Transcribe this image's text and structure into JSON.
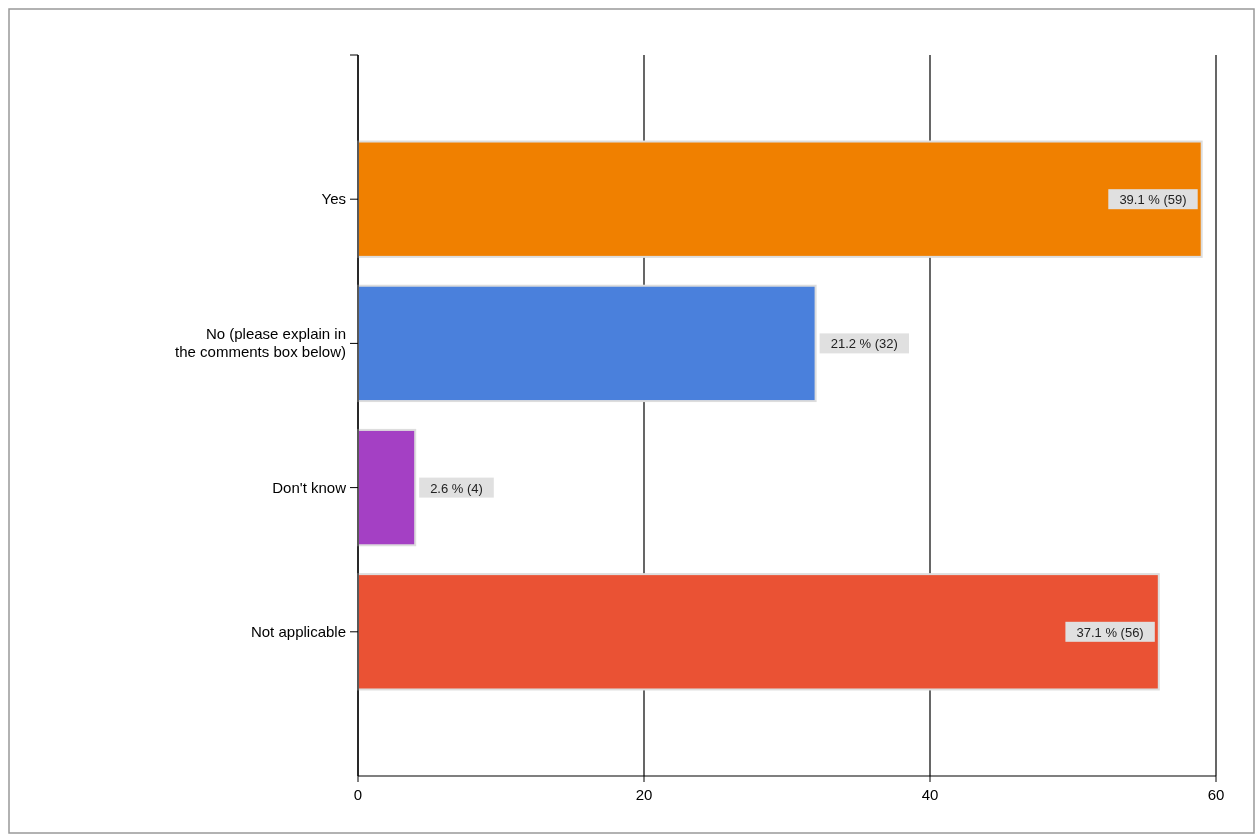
{
  "chart_data": {
    "type": "bar",
    "orientation": "horizontal",
    "categories": [
      "Yes",
      "No (please explain in the comments box below)",
      "Don't know",
      "Not applicable"
    ],
    "values": [
      59,
      32,
      4,
      56
    ],
    "colors": [
      "#f08000",
      "#4a80dc",
      "#a440c4",
      "#ea5234"
    ],
    "value_labels": [
      "39.1 % (59)",
      "21.2 % (32)",
      "2.6 % (4)",
      "37.1 % (56)"
    ],
    "xlim": [
      0,
      60
    ],
    "xticks": [
      0,
      20,
      40,
      60
    ],
    "grid": "x"
  }
}
